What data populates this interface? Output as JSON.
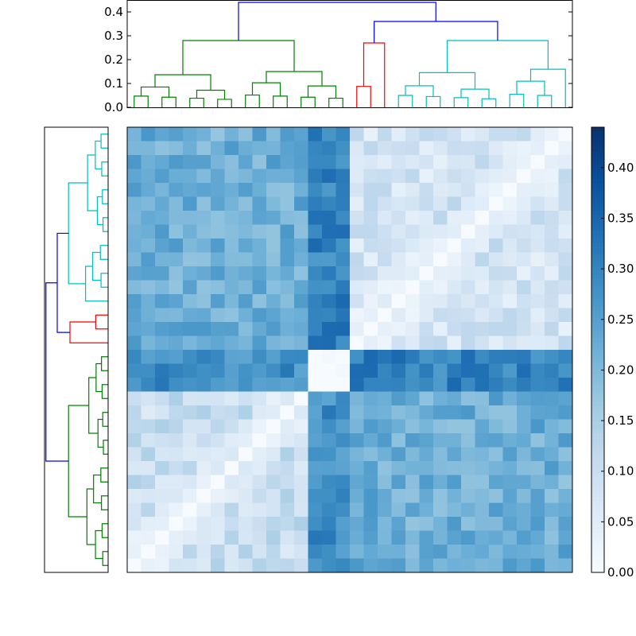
{
  "chart_data": {
    "type": "heatmap",
    "title": "",
    "xlabel": "",
    "ylabel": "",
    "n": 32,
    "value_range": [
      0.0,
      0.44
    ],
    "colormap": "Blues",
    "clusters": [
      {
        "size": 13,
        "link_color": "#00bfbf"
      },
      {
        "size": 3,
        "link_color": "#ff0000"
      },
      {
        "size": 16,
        "link_color": "#008000"
      }
    ],
    "top_dendrogram": {
      "ylim": [
        0,
        0.45
      ],
      "y_ticks": [
        "0.0",
        "0.1",
        "0.2",
        "0.3",
        "0.4"
      ],
      "y_tick_values": [
        0,
        0.1,
        0.2,
        0.3,
        0.4
      ],
      "root_height": 0.44,
      "sub_root_height": 0.36,
      "cluster_heights": [
        0.28,
        0.27,
        0.28
      ]
    },
    "colorbar": {
      "ticks": [
        "0.00",
        "0.05",
        "0.10",
        "0.15",
        "0.20",
        "0.25",
        "0.30",
        "0.35",
        "0.40"
      ],
      "tick_values": [
        0,
        0.05,
        0.1,
        0.15,
        0.2,
        0.25,
        0.3,
        0.35,
        0.4
      ],
      "range": [
        0,
        0.44
      ]
    },
    "approx_distances": {
      "within_cyan": 0.1,
      "within_red": 0.02,
      "within_green": 0.08,
      "cyan_red": 0.28,
      "cyan_green": 0.22,
      "red_green": 0.3,
      "diagonal": 0.0
    },
    "grid": false,
    "legend": "none"
  }
}
